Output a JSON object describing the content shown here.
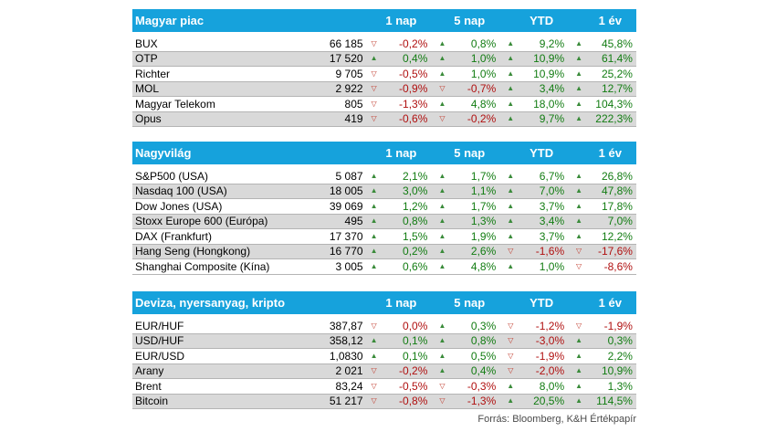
{
  "columns": [
    "1 nap",
    "5 nap",
    "YTD",
    "1 év"
  ],
  "sections": [
    {
      "title": "Magyar piac",
      "rows": [
        {
          "name": "BUX",
          "value": "66 185",
          "changes": [
            {
              "v": "-0,2%",
              "dir": "down"
            },
            {
              "v": "0,8%",
              "dir": "up"
            },
            {
              "v": "9,2%",
              "dir": "up"
            },
            {
              "v": "45,8%",
              "dir": "up"
            }
          ]
        },
        {
          "name": "OTP",
          "value": "17 520",
          "changes": [
            {
              "v": "0,4%",
              "dir": "up"
            },
            {
              "v": "1,0%",
              "dir": "up"
            },
            {
              "v": "10,9%",
              "dir": "up"
            },
            {
              "v": "61,4%",
              "dir": "up"
            }
          ]
        },
        {
          "name": "Richter",
          "value": "9 705",
          "changes": [
            {
              "v": "-0,5%",
              "dir": "down"
            },
            {
              "v": "1,0%",
              "dir": "up"
            },
            {
              "v": "10,9%",
              "dir": "up"
            },
            {
              "v": "25,2%",
              "dir": "up"
            }
          ]
        },
        {
          "name": "MOL",
          "value": "2 922",
          "changes": [
            {
              "v": "-0,9%",
              "dir": "down"
            },
            {
              "v": "-0,7%",
              "dir": "down"
            },
            {
              "v": "3,4%",
              "dir": "up"
            },
            {
              "v": "12,7%",
              "dir": "up"
            }
          ]
        },
        {
          "name": "Magyar Telekom",
          "value": "805",
          "changes": [
            {
              "v": "-1,3%",
              "dir": "down"
            },
            {
              "v": "4,8%",
              "dir": "up"
            },
            {
              "v": "18,0%",
              "dir": "up"
            },
            {
              "v": "104,3%",
              "dir": "up"
            }
          ]
        },
        {
          "name": "Opus",
          "value": "419",
          "changes": [
            {
              "v": "-0,6%",
              "dir": "down"
            },
            {
              "v": "-0,2%",
              "dir": "down"
            },
            {
              "v": "9,7%",
              "dir": "up"
            },
            {
              "v": "222,3%",
              "dir": "up"
            }
          ]
        }
      ]
    },
    {
      "title": "Nagyvilág",
      "rows": [
        {
          "name": "S&P500 (USA)",
          "value": "5 087",
          "changes": [
            {
              "v": "2,1%",
              "dir": "up"
            },
            {
              "v": "1,7%",
              "dir": "up"
            },
            {
              "v": "6,7%",
              "dir": "up"
            },
            {
              "v": "26,8%",
              "dir": "up"
            }
          ]
        },
        {
          "name": "Nasdaq 100 (USA)",
          "value": "18 005",
          "changes": [
            {
              "v": "3,0%",
              "dir": "up"
            },
            {
              "v": "1,1%",
              "dir": "up"
            },
            {
              "v": "7,0%",
              "dir": "up"
            },
            {
              "v": "47,8%",
              "dir": "up"
            }
          ]
        },
        {
          "name": "Dow Jones (USA)",
          "value": "39 069",
          "changes": [
            {
              "v": "1,2%",
              "dir": "up"
            },
            {
              "v": "1,7%",
              "dir": "up"
            },
            {
              "v": "3,7%",
              "dir": "up"
            },
            {
              "v": "17,8%",
              "dir": "up"
            }
          ]
        },
        {
          "name": "Stoxx Europe 600 (Európa)",
          "value": "495",
          "changes": [
            {
              "v": "0,8%",
              "dir": "up"
            },
            {
              "v": "1,3%",
              "dir": "up"
            },
            {
              "v": "3,4%",
              "dir": "up"
            },
            {
              "v": "7,0%",
              "dir": "up"
            }
          ]
        },
        {
          "name": "DAX (Frankfurt)",
          "value": "17 370",
          "changes": [
            {
              "v": "1,5%",
              "dir": "up"
            },
            {
              "v": "1,9%",
              "dir": "up"
            },
            {
              "v": "3,7%",
              "dir": "up"
            },
            {
              "v": "12,2%",
              "dir": "up"
            }
          ]
        },
        {
          "name": "Hang Seng (Hongkong)",
          "value": "16 770",
          "changes": [
            {
              "v": "0,2%",
              "dir": "up"
            },
            {
              "v": "2,6%",
              "dir": "up"
            },
            {
              "v": "-1,6%",
              "dir": "down"
            },
            {
              "v": "-17,6%",
              "dir": "down"
            }
          ]
        },
        {
          "name": "Shanghai Composite (Kína)",
          "value": "3 005",
          "changes": [
            {
              "v": "0,6%",
              "dir": "up"
            },
            {
              "v": "4,8%",
              "dir": "up"
            },
            {
              "v": "1,0%",
              "dir": "up"
            },
            {
              "v": "-8,6%",
              "dir": "down"
            }
          ]
        }
      ]
    },
    {
      "title": "Deviza, nyersanyag, kripto",
      "rows": [
        {
          "name": "EUR/HUF",
          "value": "387,87",
          "changes": [
            {
              "v": "0,0%",
              "dir": "down"
            },
            {
              "v": "0,3%",
              "dir": "up"
            },
            {
              "v": "-1,2%",
              "dir": "down"
            },
            {
              "v": "-1,9%",
              "dir": "down"
            }
          ]
        },
        {
          "name": "USD/HUF",
          "value": "358,12",
          "changes": [
            {
              "v": "0,1%",
              "dir": "up"
            },
            {
              "v": "0,8%",
              "dir": "up"
            },
            {
              "v": "-3,0%",
              "dir": "down"
            },
            {
              "v": "0,3%",
              "dir": "up"
            }
          ]
        },
        {
          "name": "EUR/USD",
          "value": "1,0830",
          "changes": [
            {
              "v": "0,1%",
              "dir": "up"
            },
            {
              "v": "0,5%",
              "dir": "up"
            },
            {
              "v": "-1,9%",
              "dir": "down"
            },
            {
              "v": "2,2%",
              "dir": "up"
            }
          ]
        },
        {
          "name": "Arany",
          "value": "2 021",
          "changes": [
            {
              "v": "-0,2%",
              "dir": "down"
            },
            {
              "v": "0,4%",
              "dir": "up"
            },
            {
              "v": "-2,0%",
              "dir": "down"
            },
            {
              "v": "10,9%",
              "dir": "up"
            }
          ]
        },
        {
          "name": "Brent",
          "value": "83,24",
          "changes": [
            {
              "v": "-0,5%",
              "dir": "down"
            },
            {
              "v": "-0,3%",
              "dir": "down"
            },
            {
              "v": "8,0%",
              "dir": "up"
            },
            {
              "v": "1,3%",
              "dir": "up"
            }
          ]
        },
        {
          "name": "Bitcoin",
          "value": "51 217",
          "changes": [
            {
              "v": "-0,8%",
              "dir": "down"
            },
            {
              "v": "-1,3%",
              "dir": "down"
            },
            {
              "v": "20,5%",
              "dir": "up"
            },
            {
              "v": "114,5%",
              "dir": "up"
            }
          ]
        }
      ]
    }
  ],
  "footer": "Forrás: Bloomberg, K&H Értékpapír",
  "icons": {
    "up": "triangle-up-icon",
    "down": "triangle-down-icon"
  },
  "colors": {
    "header": "#16a2dc",
    "up": "#127c12",
    "down": "#b01010",
    "alt_row": "#d9d9d9"
  }
}
